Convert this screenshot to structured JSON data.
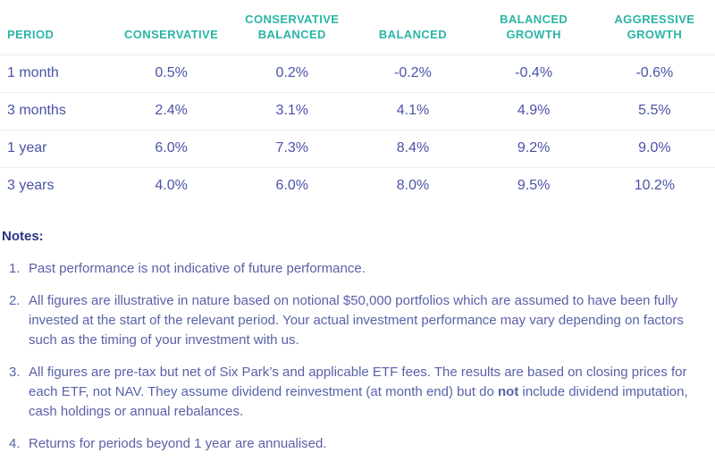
{
  "table": {
    "columns": [
      "PERIOD",
      "CONSERVATIVE",
      "CONSERVATIVE BALANCED",
      "BALANCED",
      "BALANCED GROWTH",
      "AGGRESSIVE GROWTH"
    ],
    "rows": [
      {
        "period": "1 month",
        "values": [
          "0.5%",
          "0.2%",
          "-0.2%",
          "-0.4%",
          "-0.6%"
        ]
      },
      {
        "period": "3 months",
        "values": [
          "2.4%",
          "3.1%",
          "4.1%",
          "4.9%",
          "5.5%"
        ]
      },
      {
        "period": "1 year",
        "values": [
          "6.0%",
          "7.3%",
          "8.4%",
          "9.2%",
          "9.0%"
        ]
      },
      {
        "period": "3 years",
        "values": [
          "4.0%",
          "6.0%",
          "8.0%",
          "9.5%",
          "10.2%"
        ]
      }
    ]
  },
  "notes": {
    "title": "Notes:",
    "items": [
      {
        "number": "1.",
        "text": "Past performance is not indicative of future performance."
      },
      {
        "number": "2.",
        "text": "All figures are illustrative in nature based on notional $50,000 portfolios which are assumed to have been fully invested at the start of the relevant period. Your actual investment performance may vary depending on factors such as the timing of your investment with us."
      },
      {
        "number": "3.",
        "pre": "All figures are pre-tax but net of Six Park’s and applicable ETF fees. The results are based on closing prices for each ETF, not NAV. They assume dividend reinvestment (at month end) but do ",
        "bold": "not",
        "post": " include dividend imputation, cash holdings or annual rebalances."
      },
      {
        "number": "4.",
        "text": "Returns for periods beyond 1 year are annualised."
      }
    ]
  },
  "colors": {
    "header_teal": "#2AB5A6",
    "value_indigo": "#4A53A7",
    "notes_navy": "#2B3583",
    "notes_body": "#5A61A8",
    "divider_gray": "#EBECF2"
  }
}
